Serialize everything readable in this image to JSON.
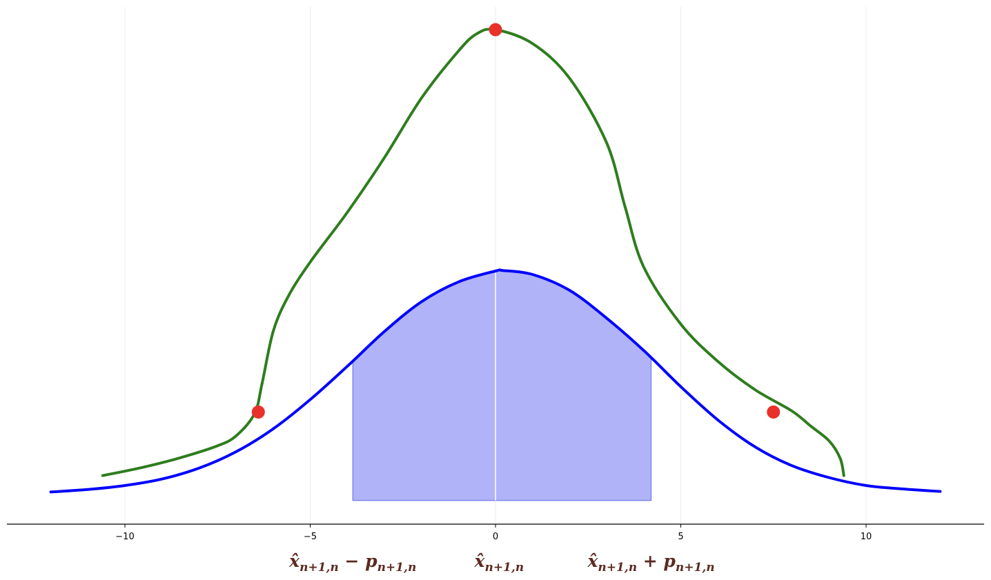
{
  "chart_data": {
    "type": "line",
    "title": "",
    "xlabel": "",
    "ylabel": "",
    "xlim": [
      -12.5,
      13.2
    ],
    "ylim": [
      0,
      1.0
    ],
    "grid": "vertical",
    "legend": "none",
    "x_ticks": [
      -10,
      -5,
      0,
      5,
      10
    ],
    "x_tick_labels": [
      "−10",
      "−5",
      "0",
      "5",
      "10"
    ],
    "y_axis_visible": false,
    "series": [
      {
        "kind": "curve",
        "color": "#0000ff",
        "points": [
          [
            -12,
            0.037
          ],
          [
            -11,
            0.042
          ],
          [
            -10,
            0.05
          ],
          [
            -9,
            0.063
          ],
          [
            -8,
            0.085
          ],
          [
            -7,
            0.118
          ],
          [
            -6,
            0.164
          ],
          [
            -5,
            0.223
          ],
          [
            -4,
            0.29
          ],
          [
            -3,
            0.36
          ],
          [
            -2,
            0.42
          ],
          [
            -1,
            0.46
          ],
          [
            0,
            0.482
          ],
          [
            0.2,
            0.483
          ],
          [
            1,
            0.475
          ],
          [
            2,
            0.443
          ],
          [
            3,
            0.387
          ],
          [
            4,
            0.322
          ],
          [
            5,
            0.249
          ],
          [
            6,
            0.182
          ],
          [
            7,
            0.128
          ],
          [
            8,
            0.09
          ],
          [
            9,
            0.066
          ],
          [
            10,
            0.05
          ],
          [
            11,
            0.043
          ],
          [
            12,
            0.038
          ]
        ]
      },
      {
        "kind": "curve",
        "color": "#2e7d1e",
        "points": [
          [
            -10.6,
            0.07
          ],
          [
            -9.5,
            0.087
          ],
          [
            -8.5,
            0.106
          ],
          [
            -7.5,
            0.13
          ],
          [
            -7,
            0.15
          ],
          [
            -6.5,
            0.195
          ],
          [
            -6.3,
            0.255
          ],
          [
            -6,
            0.36
          ],
          [
            -5.6,
            0.43
          ],
          [
            -5,
            0.5
          ],
          [
            -4,
            0.6
          ],
          [
            -3,
            0.71
          ],
          [
            -2,
            0.83
          ],
          [
            -1,
            0.925
          ],
          [
            -0.5,
            0.96
          ],
          [
            0,
            0.968
          ],
          [
            1,
            0.94
          ],
          [
            2,
            0.87
          ],
          [
            3,
            0.74
          ],
          [
            3.5,
            0.61
          ],
          [
            4,
            0.49
          ],
          [
            5,
            0.375
          ],
          [
            6,
            0.3
          ],
          [
            7,
            0.243
          ],
          [
            8,
            0.2
          ],
          [
            8.5,
            0.17
          ],
          [
            9,
            0.14
          ],
          [
            9.3,
            0.105
          ],
          [
            9.4,
            0.07
          ]
        ]
      }
    ],
    "shaded_region": {
      "x_start": -3.85,
      "x_end": 4.2,
      "divider_x": 0,
      "color": "#b0b3f8"
    },
    "highlight_points": {
      "color": "#e8312a",
      "points": [
        [
          -6.4,
          0.198
        ],
        [
          0,
          0.968
        ],
        [
          7.5,
          0.198
        ]
      ]
    },
    "annotations": [
      {
        "base": "x̂",
        "subscript": "n+1,n",
        "suffix": " − p",
        "suffix_subscript": "n+1,n",
        "x_anchor": -3.85
      },
      {
        "base": "x̂",
        "subscript": "n+1,n",
        "suffix": "",
        "suffix_subscript": "",
        "x_anchor": 0.1
      },
      {
        "base": "x̂",
        "subscript": "n+1,n",
        "suffix": " + p",
        "suffix_subscript": "n+1,n",
        "x_anchor": 4.2
      }
    ]
  }
}
